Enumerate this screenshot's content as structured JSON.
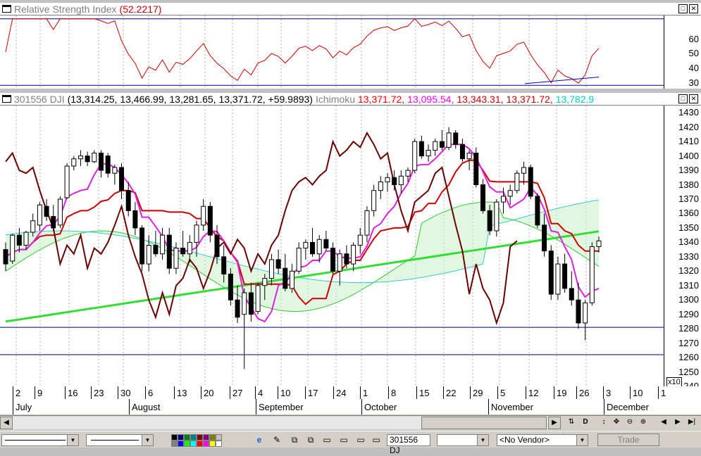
{
  "rsi_pane": {
    "title": "Relative Strength Index",
    "value": "(52.2217)",
    "min_label": "□",
    "close_label": "✕",
    "ticks": [
      "60",
      "50",
      "40",
      "30"
    ],
    "upper_level": 70,
    "lower_level": 30,
    "line_color": "#cc0000",
    "trend_color": "#0000cc"
  },
  "price_pane": {
    "symbol": "301556 DJI",
    "ohlc": "(13,314.25, 13,466.99, 13,281.65, 13,371.72, +59.9893)",
    "indicator": "Ichimoku",
    "ich_values": [
      {
        "text": "13,371.72,",
        "color": "#ff0000"
      },
      {
        "text": "13,095.54,",
        "color": "#ff00ff"
      },
      {
        "text": "13,343.31,",
        "color": "#cc0000"
      },
      {
        "text": "13,371.72,",
        "color": "#cc0000"
      },
      {
        "text": "13,782.9",
        "color": "#00cccc"
      }
    ],
    "ticks": [
      "1430",
      "1420",
      "1410",
      "1400",
      "1390",
      "1380",
      "1370",
      "1360",
      "1350",
      "1340",
      "1330",
      "1320",
      "1310",
      "1300",
      "1290",
      "1280",
      "1270",
      "1260",
      "1250",
      "1240"
    ],
    "multiplier": "x10",
    "hlines": [
      1281,
      1262
    ],
    "min_label": "□",
    "close_label": "✕"
  },
  "date_axis": {
    "days": [
      "2",
      "9",
      "16",
      "23",
      "30",
      "6",
      "13",
      "20",
      "27",
      "4",
      "10",
      "17",
      "24",
      "1",
      "8",
      "15",
      "22",
      "29",
      "5",
      "12",
      "19",
      "26",
      "3",
      "10",
      "1"
    ],
    "months": [
      "July",
      "August",
      "September",
      "October",
      "November",
      "December"
    ]
  },
  "chart_data": {
    "type": "candlestick",
    "symbol": "301556 DJI",
    "ohlc_last": {
      "open": 13314.25,
      "high": 13466.99,
      "low": 13281.65,
      "close": 13371.72,
      "change": 59.9893
    },
    "rsi_last": 52.2217,
    "y_axis_unit": "x10",
    "y_range": [
      1240,
      1435
    ],
    "rsi_range": [
      28,
      72
    ],
    "ichimoku_last": [
      13371.72,
      13095.54,
      13343.31,
      13371.72,
      13782.9
    ],
    "candles": [
      [
        1335,
        1340,
        1320,
        1325
      ],
      [
        1327,
        1346,
        1325,
        1345
      ],
      [
        1345,
        1350,
        1333,
        1338
      ],
      [
        1338,
        1348,
        1335,
        1347
      ],
      [
        1347,
        1360,
        1344,
        1355
      ],
      [
        1352,
        1368,
        1348,
        1366
      ],
      [
        1365,
        1370,
        1355,
        1358
      ],
      [
        1358,
        1366,
        1348,
        1350
      ],
      [
        1352,
        1372,
        1350,
        1370
      ],
      [
        1371,
        1395,
        1370,
        1393
      ],
      [
        1393,
        1400,
        1390,
        1398
      ],
      [
        1398,
        1404,
        1393,
        1400
      ],
      [
        1400,
        1403,
        1393,
        1396
      ],
      [
        1396,
        1404,
        1395,
        1402
      ],
      [
        1402,
        1404,
        1385,
        1390
      ],
      [
        1400,
        1402,
        1385,
        1388
      ],
      [
        1388,
        1394,
        1380,
        1392
      ],
      [
        1392,
        1395,
        1370,
        1376
      ],
      [
        1376,
        1382,
        1358,
        1362
      ],
      [
        1362,
        1368,
        1345,
        1350
      ],
      [
        1350,
        1352,
        1320,
        1325
      ],
      [
        1325,
        1345,
        1320,
        1338
      ],
      [
        1338,
        1348,
        1330,
        1332
      ],
      [
        1332,
        1350,
        1328,
        1345
      ],
      [
        1345,
        1350,
        1318,
        1322
      ],
      [
        1322,
        1340,
        1318,
        1336
      ],
      [
        1336,
        1348,
        1330,
        1332
      ],
      [
        1332,
        1345,
        1326,
        1340
      ],
      [
        1340,
        1355,
        1330,
        1352
      ],
      [
        1352,
        1370,
        1348,
        1365
      ],
      [
        1365,
        1368,
        1340,
        1345
      ],
      [
        1345,
        1352,
        1325,
        1330
      ],
      [
        1330,
        1338,
        1312,
        1318
      ],
      [
        1318,
        1322,
        1296,
        1300
      ],
      [
        1300,
        1310,
        1284,
        1288
      ],
      [
        1290,
        1308,
        1252,
        1305
      ],
      [
        1305,
        1312,
        1285,
        1290
      ],
      [
        1292,
        1312,
        1290,
        1310
      ],
      [
        1310,
        1318,
        1300,
        1315
      ],
      [
        1315,
        1332,
        1310,
        1328
      ],
      [
        1328,
        1335,
        1318,
        1322
      ],
      [
        1322,
        1332,
        1306,
        1308
      ],
      [
        1308,
        1325,
        1305,
        1320
      ],
      [
        1320,
        1340,
        1318,
        1336
      ],
      [
        1336,
        1342,
        1328,
        1340
      ],
      [
        1340,
        1350,
        1330,
        1332
      ],
      [
        1332,
        1345,
        1326,
        1342
      ],
      [
        1342,
        1348,
        1334,
        1336
      ],
      [
        1336,
        1340,
        1318,
        1320
      ],
      [
        1320,
        1335,
        1310,
        1332
      ],
      [
        1332,
        1338,
        1322,
        1325
      ],
      [
        1325,
        1340,
        1320,
        1338
      ],
      [
        1338,
        1350,
        1332,
        1345
      ],
      [
        1345,
        1365,
        1340,
        1362
      ],
      [
        1362,
        1380,
        1358,
        1376
      ],
      [
        1376,
        1386,
        1370,
        1382
      ],
      [
        1382,
        1388,
        1375,
        1385
      ],
      [
        1385,
        1390,
        1376,
        1380
      ],
      [
        1380,
        1390,
        1374,
        1386
      ],
      [
        1386,
        1392,
        1382,
        1390
      ],
      [
        1390,
        1412,
        1388,
        1410
      ],
      [
        1410,
        1414,
        1398,
        1400
      ],
      [
        1400,
        1408,
        1396,
        1404
      ],
      [
        1404,
        1412,
        1400,
        1410
      ],
      [
        1410,
        1418,
        1404,
        1406
      ],
      [
        1406,
        1420,
        1404,
        1416
      ],
      [
        1416,
        1418,
        1405,
        1408
      ],
      [
        1408,
        1412,
        1396,
        1398
      ],
      [
        1398,
        1404,
        1390,
        1402
      ],
      [
        1402,
        1406,
        1378,
        1380
      ],
      [
        1380,
        1384,
        1360,
        1362
      ],
      [
        1362,
        1366,
        1345,
        1348
      ],
      [
        1348,
        1370,
        1344,
        1368
      ],
      [
        1368,
        1378,
        1360,
        1372
      ],
      [
        1372,
        1380,
        1366,
        1376
      ],
      [
        1376,
        1390,
        1374,
        1388
      ],
      [
        1388,
        1396,
        1380,
        1392
      ],
      [
        1392,
        1394,
        1370,
        1372
      ],
      [
        1372,
        1374,
        1350,
        1352
      ],
      [
        1352,
        1360,
        1330,
        1334
      ],
      [
        1334,
        1338,
        1300,
        1304
      ],
      [
        1304,
        1330,
        1300,
        1325
      ],
      [
        1325,
        1332,
        1305,
        1308
      ],
      [
        1308,
        1320,
        1296,
        1300
      ],
      [
        1300,
        1312,
        1280,
        1284
      ],
      [
        1284,
        1300,
        1272,
        1298
      ],
      [
        1298,
        1340,
        1296,
        1337
      ],
      [
        1337,
        1344,
        1333,
        1341
      ]
    ]
  },
  "toolbar": {
    "symbol_combo": "301556 DJ",
    "vendor_combo": "<No Vendor>",
    "trade_label": "Trade",
    "nav_icons": [
      "⇅",
      "D",
      "↕",
      "✥",
      "⊖",
      "⊕",
      "◀",
      "▶"
    ]
  }
}
